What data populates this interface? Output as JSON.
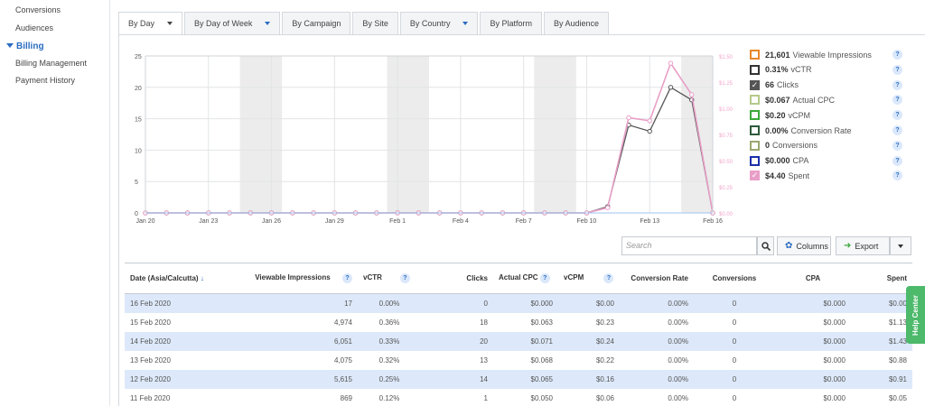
{
  "sidebar": {
    "items_top": [
      "Conversions",
      "Audiences"
    ],
    "section": "Billing",
    "items": [
      "Billing Management",
      "Payment History"
    ]
  },
  "tabs": [
    {
      "label": "By Day",
      "active": true,
      "caret": true
    },
    {
      "label": "By Day of Week",
      "active": false,
      "caret": true
    },
    {
      "label": "By Campaign",
      "active": false,
      "caret": false
    },
    {
      "label": "By Site",
      "active": false,
      "caret": false
    },
    {
      "label": "By Country",
      "active": false,
      "caret": true
    },
    {
      "label": "By Platform",
      "active": false,
      "caret": false
    },
    {
      "label": "By Audience",
      "active": false,
      "caret": false
    }
  ],
  "legend": [
    {
      "value": "21,601",
      "label": "Viewable Impressions",
      "color": "#e8892b",
      "checked": false
    },
    {
      "value": "0.31%",
      "label": "vCTR",
      "color": "#333333",
      "checked": false
    },
    {
      "value": "66",
      "label": "Clicks",
      "color": "#555555",
      "checked": true
    },
    {
      "value": "$0.067",
      "label": "Actual CPC",
      "color": "#b5c98a",
      "checked": false
    },
    {
      "value": "$0.20",
      "label": "vCPM",
      "color": "#3aa83a",
      "checked": false
    },
    {
      "value": "0.00%",
      "label": "Conversion Rate",
      "color": "#2e5a3a",
      "checked": false
    },
    {
      "value": "0",
      "label": "Conversions",
      "color": "#9aa870",
      "checked": false
    },
    {
      "value": "$0.000",
      "label": "CPA",
      "color": "#1b2fa8",
      "checked": false
    },
    {
      "value": "$4.40",
      "label": "Spent",
      "color": "#e89fc7",
      "checked": true
    }
  ],
  "chart_data": {
    "type": "line",
    "x": [
      "Jan 20",
      "Jan 21",
      "Jan 22",
      "Jan 23",
      "Jan 24",
      "Jan 25",
      "Jan 26",
      "Jan 27",
      "Jan 28",
      "Jan 29",
      "Jan 30",
      "Jan 31",
      "Feb 1",
      "Feb 2",
      "Feb 3",
      "Feb 4",
      "Feb 5",
      "Feb 6",
      "Feb 7",
      "Feb 8",
      "Feb 9",
      "Feb 10",
      "Feb 11",
      "Feb 12",
      "Feb 13",
      "Feb 14",
      "Feb 15",
      "Feb 16"
    ],
    "x_tick_labels": [
      "Jan 20",
      "Jan 23",
      "Jan 26",
      "Jan 29",
      "Feb 1",
      "Feb 4",
      "Feb 7",
      "Feb 10",
      "Feb 13",
      "Feb 16"
    ],
    "y_left_ticks": [
      "0",
      "5",
      "10",
      "15",
      "20",
      "25"
    ],
    "y_right_ticks": [
      "$0.00",
      "$0.25",
      "$0.50",
      "$0.75",
      "$1.00",
      "$1.25",
      "$1.50"
    ],
    "ylim_left": [
      0,
      25
    ],
    "ylim_right": [
      0,
      1.5
    ],
    "weekend_bands": [
      [
        "Jan 25",
        "Jan 26"
      ],
      [
        "Feb 1",
        "Feb 2"
      ],
      [
        "Feb 8",
        "Feb 9"
      ],
      [
        "Feb 15",
        "Feb 16"
      ]
    ],
    "series": [
      {
        "name": "Clicks",
        "axis": "left",
        "color": "#555555",
        "values": [
          0,
          0,
          0,
          0,
          0,
          0,
          0,
          0,
          0,
          0,
          0,
          0,
          0,
          0,
          0,
          0,
          0,
          0,
          0,
          0,
          0,
          0,
          1,
          14,
          13,
          20,
          18,
          0
        ]
      },
      {
        "name": "Spent",
        "axis": "right",
        "color": "#e89fc7",
        "values": [
          0,
          0,
          0,
          0,
          0,
          0,
          0,
          0,
          0,
          0,
          0,
          0,
          0,
          0,
          0,
          0,
          0,
          0,
          0,
          0,
          0,
          0,
          0.05,
          0.91,
          0.88,
          1.43,
          1.13,
          0.0
        ]
      }
    ]
  },
  "toolbar": {
    "search_placeholder": "Search",
    "columns_label": "Columns",
    "export_label": "Export"
  },
  "table": {
    "headers": [
      "Date (Asia/Calcutta)",
      "Viewable Impressions",
      "vCTR",
      "Clicks",
      "Actual CPC",
      "vCPM",
      "Conversion Rate",
      "Conversions",
      "CPA",
      "Spent"
    ],
    "rows": [
      [
        "16 Feb 2020",
        "17",
        "0.00%",
        "0",
        "$0.000",
        "$0.00",
        "0.00%",
        "0",
        "$0.000",
        "$0.00"
      ],
      [
        "15 Feb 2020",
        "4,974",
        "0.36%",
        "18",
        "$0.063",
        "$0.23",
        "0.00%",
        "0",
        "$0.000",
        "$1.13"
      ],
      [
        "14 Feb 2020",
        "6,051",
        "0.33%",
        "20",
        "$0.071",
        "$0.24",
        "0.00%",
        "0",
        "$0.000",
        "$1.43"
      ],
      [
        "13 Feb 2020",
        "4,075",
        "0.32%",
        "13",
        "$0.068",
        "$0.22",
        "0.00%",
        "0",
        "$0.000",
        "$0.88"
      ],
      [
        "12 Feb 2020",
        "5,615",
        "0.25%",
        "14",
        "$0.065",
        "$0.16",
        "0.00%",
        "0",
        "$0.000",
        "$0.91"
      ],
      [
        "11 Feb 2020",
        "869",
        "0.12%",
        "1",
        "$0.050",
        "$0.06",
        "0.00%",
        "0",
        "$0.000",
        "$0.05"
      ]
    ]
  },
  "help_center": "Help Center"
}
